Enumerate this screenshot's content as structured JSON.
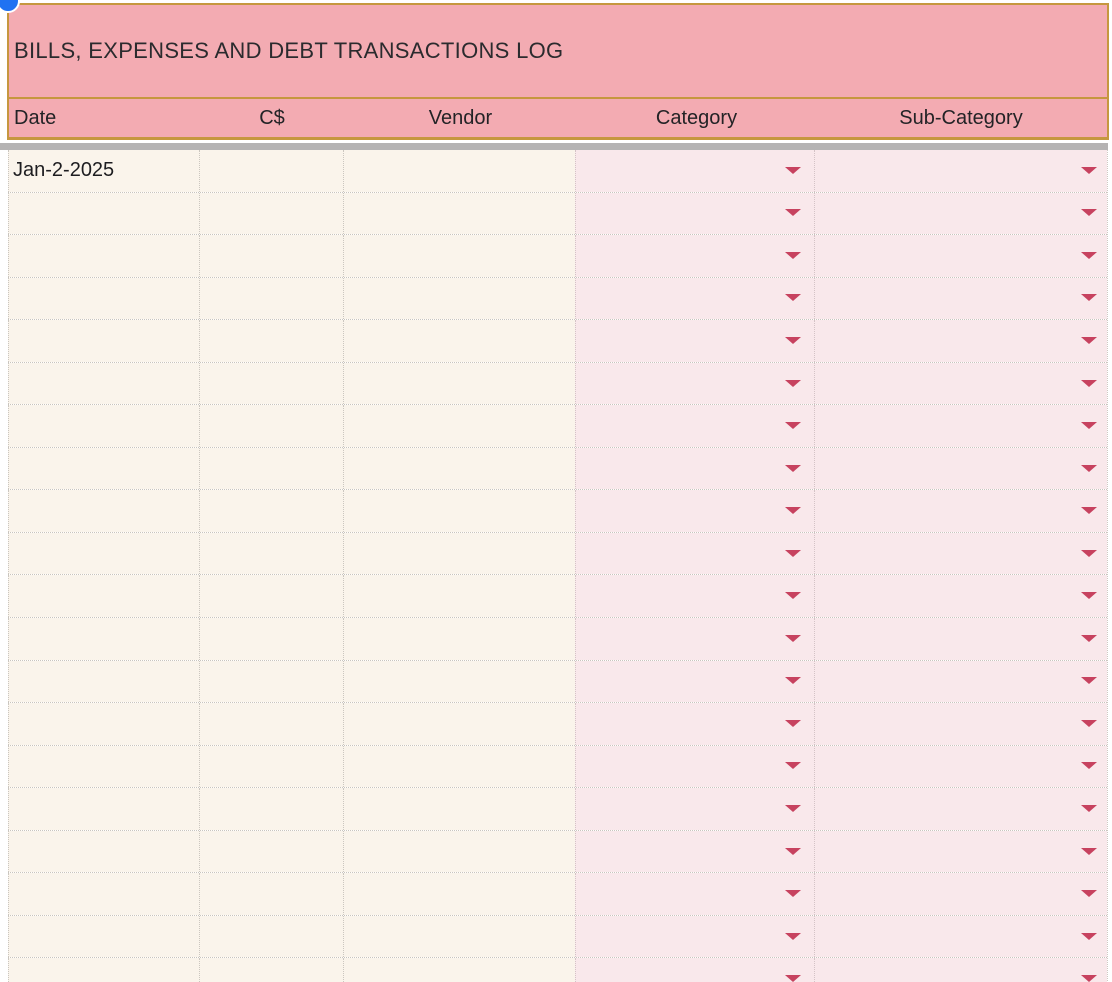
{
  "table": {
    "title": "BILLS, EXPENSES AND DEBT TRANSACTIONS LOG",
    "columns": [
      {
        "label": "Date",
        "align": "left",
        "dropdown": false
      },
      {
        "label": "C$",
        "align": "center",
        "dropdown": false
      },
      {
        "label": "Vendor",
        "align": "center",
        "dropdown": false
      },
      {
        "label": "Category",
        "align": "center",
        "dropdown": true
      },
      {
        "label": "Sub-Category",
        "align": "center",
        "dropdown": true
      }
    ],
    "rows": [
      {
        "date": "Jan-2-2025",
        "amount": "",
        "vendor": "",
        "category": "",
        "subcategory": ""
      },
      {
        "date": "",
        "amount": "",
        "vendor": "",
        "category": "",
        "subcategory": ""
      },
      {
        "date": "",
        "amount": "",
        "vendor": "",
        "category": "",
        "subcategory": ""
      },
      {
        "date": "",
        "amount": "",
        "vendor": "",
        "category": "",
        "subcategory": ""
      },
      {
        "date": "",
        "amount": "",
        "vendor": "",
        "category": "",
        "subcategory": ""
      },
      {
        "date": "",
        "amount": "",
        "vendor": "",
        "category": "",
        "subcategory": ""
      },
      {
        "date": "",
        "amount": "",
        "vendor": "",
        "category": "",
        "subcategory": ""
      },
      {
        "date": "",
        "amount": "",
        "vendor": "",
        "category": "",
        "subcategory": ""
      },
      {
        "date": "",
        "amount": "",
        "vendor": "",
        "category": "",
        "subcategory": ""
      },
      {
        "date": "",
        "amount": "",
        "vendor": "",
        "category": "",
        "subcategory": ""
      },
      {
        "date": "",
        "amount": "",
        "vendor": "",
        "category": "",
        "subcategory": ""
      },
      {
        "date": "",
        "amount": "",
        "vendor": "",
        "category": "",
        "subcategory": ""
      },
      {
        "date": "",
        "amount": "",
        "vendor": "",
        "category": "",
        "subcategory": ""
      },
      {
        "date": "",
        "amount": "",
        "vendor": "",
        "category": "",
        "subcategory": ""
      },
      {
        "date": "",
        "amount": "",
        "vendor": "",
        "category": "",
        "subcategory": ""
      },
      {
        "date": "",
        "amount": "",
        "vendor": "",
        "category": "",
        "subcategory": ""
      },
      {
        "date": "",
        "amount": "",
        "vendor": "",
        "category": "",
        "subcategory": ""
      },
      {
        "date": "",
        "amount": "",
        "vendor": "",
        "category": "",
        "subcategory": ""
      },
      {
        "date": "",
        "amount": "",
        "vendor": "",
        "category": "",
        "subcategory": ""
      },
      {
        "date": "",
        "amount": "",
        "vendor": "",
        "category": "",
        "subcategory": ""
      }
    ]
  },
  "icons": {
    "dropdown": "chevron-down-icon",
    "presence": "presence-dot-icon"
  },
  "colors": {
    "header_pink": "#f3abb2",
    "gold_border": "#c6973f",
    "cream_cell": "#faf4eb",
    "pink_cell": "#f9e8eb",
    "arrow_crimson": "#c7425f",
    "shadow_gray": "#b5b3b3",
    "presence_blue": "#2072f2",
    "text_dark": "#2b2b2e"
  }
}
